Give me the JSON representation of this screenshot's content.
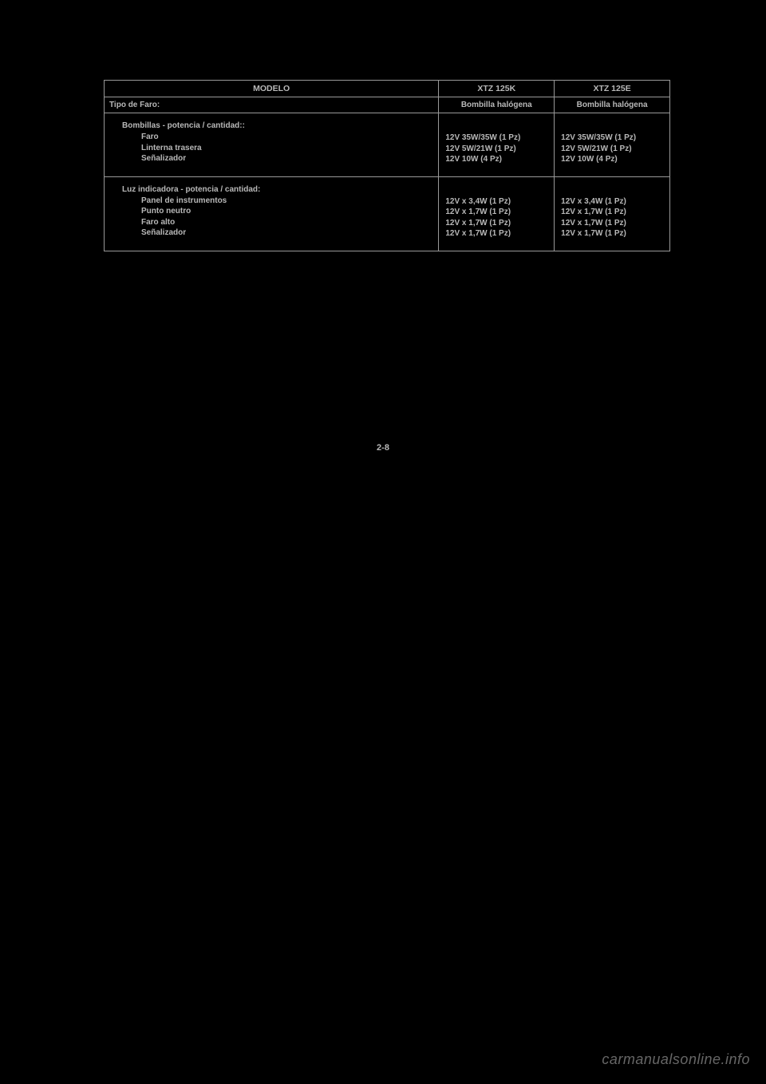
{
  "table": {
    "header": {
      "modelo": "MODELO",
      "col1": "XTZ 125K",
      "col2": "XTZ 125E"
    },
    "faro_row": {
      "label": "Tipo de Faro:",
      "col1": "Bombilla halógena",
      "col2": "Bombilla halógena"
    },
    "bombillas": {
      "title": "Bombillas - potencia / cantidad::",
      "items": [
        "Faro",
        "Linterna trasera",
        "Señalizador"
      ],
      "col1_values": [
        "12V 35W/35W (1  Pz)",
        "12V 5W/21W (1  Pz)",
        "12V 10W (4 Pz)"
      ],
      "col2_values": [
        "12V 35W/35W (1  Pz)",
        "12V 5W/21W (1  Pz)",
        "12V 10W (4 Pz)"
      ]
    },
    "luz_indicadora": {
      "title": "Luz indicadora - potencia / cantidad:",
      "items": [
        "Panel de instrumentos",
        "Punto neutro",
        "Faro alto",
        "Señalizador"
      ],
      "col1_values": [
        "12V x 3,4W (1  Pz)",
        "12V x 1,7W (1  Pz)",
        "12V x 1,7W (1  Pz)",
        "12V x 1,7W (1  Pz)"
      ],
      "col2_values": [
        "12V x 3,4W (1  Pz)",
        "12V x 1,7W (1  Pz)",
        "12V x 1,7W (1  Pz)",
        "12V x 1,7W (1  Pz)"
      ]
    }
  },
  "page_number": "2-8",
  "watermark": "carmanualsonline.info",
  "colors": {
    "background": "#000000",
    "text": "#b8b8b8",
    "border": "#999999"
  }
}
